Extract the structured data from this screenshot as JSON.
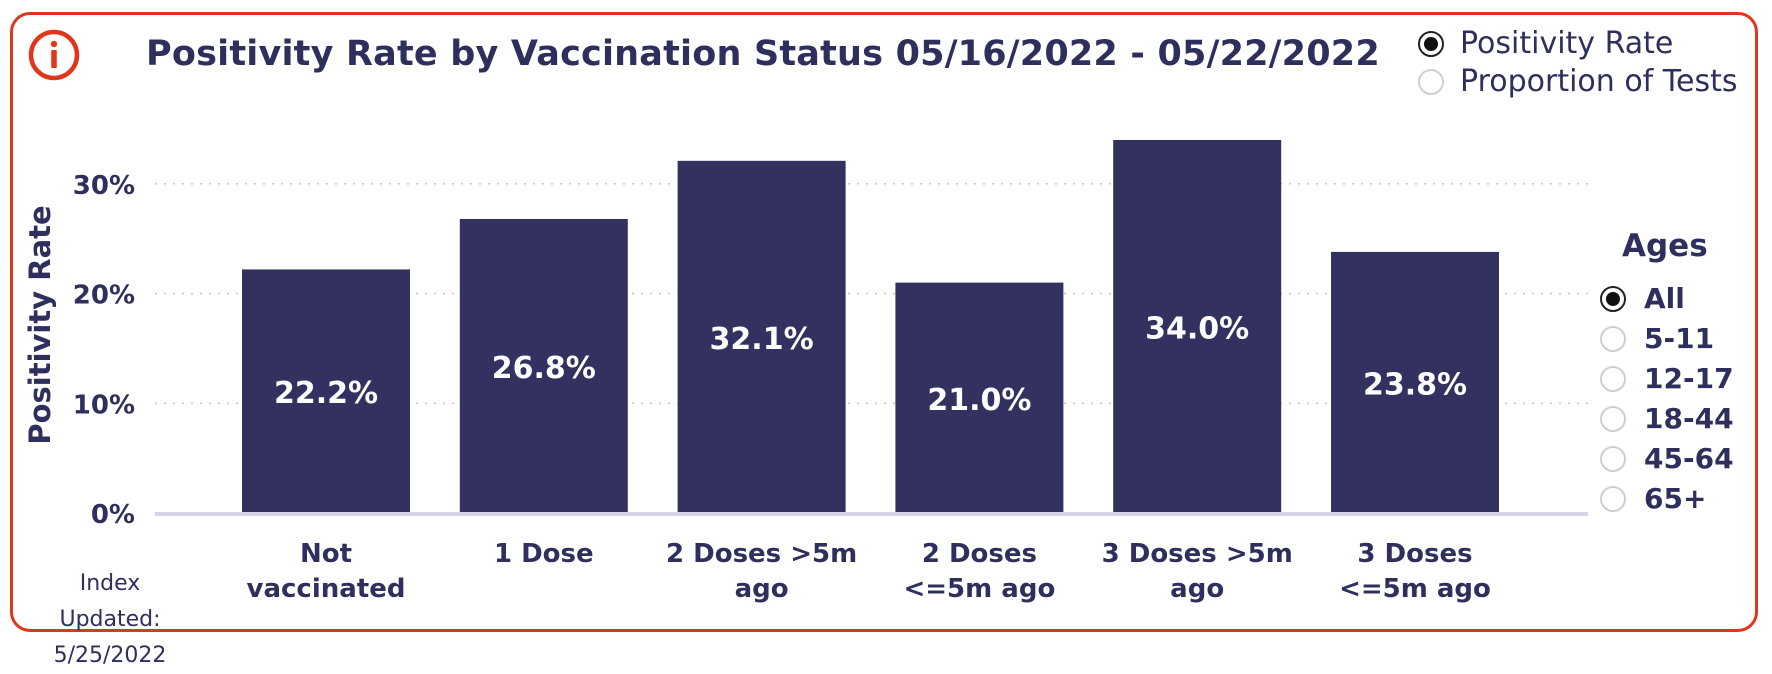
{
  "title": "Positivity Rate by Vaccination Status 05/16/2022 - 05/22/2022",
  "info_icon": "info-icon",
  "metric_toggle": [
    {
      "label": "Positivity Rate",
      "selected": true
    },
    {
      "label": "Proportion of Tests",
      "selected": false
    }
  ],
  "ages": {
    "title": "Ages",
    "options": [
      {
        "label": "All",
        "selected": true
      },
      {
        "label": "5-11",
        "selected": false
      },
      {
        "label": "12-17",
        "selected": false
      },
      {
        "label": "18-44",
        "selected": false
      },
      {
        "label": "45-64",
        "selected": false
      },
      {
        "label": "65+",
        "selected": false
      }
    ]
  },
  "footer": {
    "label": "Index Updated:",
    "date": "5/25/2022"
  },
  "colors": {
    "bar": "#323160",
    "frame": "#e0371c",
    "text": "#2f2f5e",
    "grid": "#c9c9c9",
    "baseline": "#d6d4e6"
  },
  "chart_data": {
    "type": "bar",
    "title": "Positivity Rate by Vaccination Status 05/16/2022 - 05/22/2022",
    "xlabel": "",
    "ylabel": "Positivity Rate",
    "categories": [
      [
        "Not",
        "vaccinated"
      ],
      [
        "1 Dose"
      ],
      [
        "2 Doses >5m",
        "ago"
      ],
      [
        "2 Doses",
        "<=5m ago"
      ],
      [
        "3 Doses >5m",
        "ago"
      ],
      [
        "3 Doses",
        "<=5m ago"
      ]
    ],
    "values": [
      22.2,
      26.8,
      32.1,
      21.0,
      34.0,
      23.8
    ],
    "data_labels": [
      "22.2%",
      "26.8%",
      "32.1%",
      "21.0%",
      "34.0%",
      "23.8%"
    ],
    "y_ticks": [
      0,
      10,
      20,
      30
    ],
    "y_tick_labels": [
      "0%",
      "10%",
      "20%",
      "30%"
    ],
    "ylim": [
      0,
      35
    ],
    "grid": true,
    "legend": "none"
  }
}
